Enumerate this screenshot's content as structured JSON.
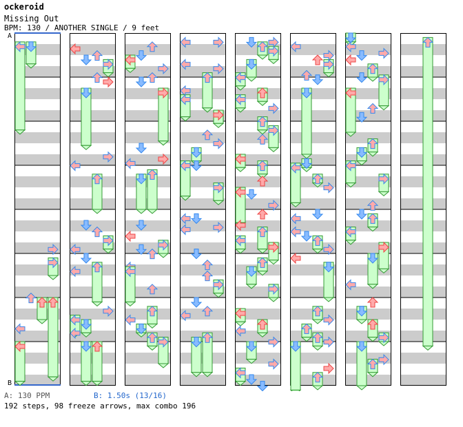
{
  "header": {
    "title": "ockeroid",
    "song": "Missing Out",
    "meta": "BPM: 130 / ANOTHER SINGLE / 9 feet"
  },
  "markers": {
    "a": "A",
    "b": "B"
  },
  "footer": {
    "bpm_a": "A: 130 PPM",
    "bpm_b": "B: 1.50s (13/16)",
    "stats": "192 steps, 98 freeze arrows, max combo 196"
  },
  "colors": {
    "left": "#ee4444",
    "down": "#3388ee",
    "up": "#ee4444",
    "right": "#ee4444",
    "eighth": "#3388ee",
    "sixteenth": "#dd55dd",
    "freeze_fill": "#ccffcc",
    "freeze_border": "#339933",
    "stripe": "#cccccc"
  },
  "chart_data": {
    "type": "step-chart",
    "columns": 8,
    "measures_per_column": 8,
    "lanes": [
      "left",
      "down",
      "up",
      "right"
    ],
    "notes": [
      [
        0,
        0.2,
        0,
        "left",
        "freeze",
        2.0
      ],
      [
        0,
        0.2,
        1,
        "down",
        "freeze",
        0.5
      ],
      [
        0,
        4.8,
        3,
        "right",
        "tap"
      ],
      [
        0,
        5.1,
        3,
        "right",
        "freeze",
        0.4
      ],
      [
        0,
        5.9,
        1,
        "up",
        "tap"
      ],
      [
        0,
        6.0,
        2,
        "up",
        "freeze",
        0.5
      ],
      [
        0,
        6.0,
        3,
        "up",
        "freeze",
        1.8
      ],
      [
        0,
        6.6,
        0,
        "left",
        "tap"
      ],
      [
        0,
        7.0,
        0,
        "left",
        "freeze",
        0.9
      ],
      [
        1,
        0.25,
        0,
        "left",
        "tap"
      ],
      [
        1,
        0.4,
        2,
        "up",
        "tap"
      ],
      [
        1,
        0.5,
        1,
        "down",
        "tap"
      ],
      [
        1,
        0.6,
        3,
        "right",
        "freeze",
        0.3
      ],
      [
        1,
        0.9,
        2,
        "up",
        "tap"
      ],
      [
        1,
        1.0,
        3,
        "right",
        "tap"
      ],
      [
        1,
        1.25,
        1,
        "down",
        "freeze",
        1.3
      ],
      [
        1,
        2.7,
        3,
        "right",
        "tap"
      ],
      [
        1,
        2.9,
        0,
        "left",
        "tap"
      ],
      [
        1,
        3.2,
        2,
        "up",
        "freeze",
        0.8
      ],
      [
        1,
        4.25,
        1,
        "down",
        "tap"
      ],
      [
        1,
        4.4,
        2,
        "up",
        "tap"
      ],
      [
        1,
        4.6,
        3,
        "right",
        "freeze",
        0.3
      ],
      [
        1,
        4.8,
        0,
        "left",
        "tap"
      ],
      [
        1,
        5.0,
        1,
        "down",
        "tap"
      ],
      [
        1,
        5.2,
        2,
        "up",
        "freeze",
        0.9
      ],
      [
        1,
        5.3,
        0,
        "left",
        "tap"
      ],
      [
        1,
        6.2,
        3,
        "right",
        "tap"
      ],
      [
        1,
        6.4,
        0,
        "left",
        "freeze",
        0.4
      ],
      [
        1,
        6.5,
        1,
        "down",
        "freeze",
        0.3
      ],
      [
        1,
        6.7,
        0,
        "left",
        "tap"
      ],
      [
        1,
        7.0,
        1,
        "down",
        "freeze",
        0.9
      ],
      [
        1,
        7.0,
        2,
        "up",
        "freeze",
        0.9
      ],
      [
        2,
        0.2,
        2,
        "up",
        "tap"
      ],
      [
        2,
        0.4,
        1,
        "down",
        "tap"
      ],
      [
        2,
        0.5,
        0,
        "left",
        "freeze",
        0.3
      ],
      [
        2,
        0.7,
        3,
        "right",
        "tap"
      ],
      [
        2,
        0.9,
        2,
        "up",
        "tap"
      ],
      [
        2,
        1.0,
        1,
        "down",
        "tap"
      ],
      [
        2,
        1.25,
        3,
        "right",
        "freeze",
        1.2
      ],
      [
        2,
        2.5,
        1,
        "down",
        "tap"
      ],
      [
        2,
        2.75,
        3,
        "right",
        "tap"
      ],
      [
        2,
        2.85,
        0,
        "left",
        "tap"
      ],
      [
        2,
        3.2,
        1,
        "down",
        "freeze",
        0.8
      ],
      [
        2,
        3.1,
        2,
        "up",
        "freeze",
        0.9
      ],
      [
        2,
        4.25,
        1,
        "down",
        "tap"
      ],
      [
        2,
        4.5,
        0,
        "left",
        "tap"
      ],
      [
        2,
        4.7,
        3,
        "right",
        "freeze",
        0.3
      ],
      [
        2,
        4.8,
        1,
        "down",
        "tap"
      ],
      [
        2,
        4.9,
        2,
        "up",
        "tap"
      ],
      [
        2,
        5.2,
        0,
        "left",
        "tap"
      ],
      [
        2,
        5.3,
        0,
        "left",
        "freeze",
        0.8
      ],
      [
        2,
        5.7,
        2,
        "up",
        "tap"
      ],
      [
        2,
        6.2,
        2,
        "up",
        "freeze",
        0.4
      ],
      [
        2,
        6.4,
        0,
        "left",
        "tap"
      ],
      [
        2,
        6.6,
        1,
        "down",
        "freeze",
        0.2
      ],
      [
        2,
        6.8,
        2,
        "up",
        "freeze",
        0.3
      ],
      [
        2,
        6.9,
        3,
        "right",
        "freeze",
        0.6
      ],
      [
        3,
        0.1,
        0,
        "left",
        "tap"
      ],
      [
        3,
        0.1,
        3,
        "right",
        "tap"
      ],
      [
        3,
        0.6,
        0,
        "left",
        "tap"
      ],
      [
        3,
        0.7,
        3,
        "right",
        "tap"
      ],
      [
        3,
        0.9,
        2,
        "up",
        "freeze",
        0.8
      ],
      [
        3,
        1.2,
        0,
        "left",
        "tap"
      ],
      [
        3,
        1.4,
        0,
        "left",
        "freeze",
        0.5
      ],
      [
        3,
        1.75,
        3,
        "right",
        "freeze",
        0.3
      ],
      [
        3,
        2.2,
        2,
        "up",
        "tap"
      ],
      [
        3,
        2.4,
        3,
        "right",
        "tap"
      ],
      [
        3,
        2.6,
        1,
        "down",
        "freeze",
        0.3
      ],
      [
        3,
        2.9,
        1,
        "down",
        "tap"
      ],
      [
        3,
        2.9,
        0,
        "left",
        "freeze",
        0.8
      ],
      [
        3,
        3.4,
        3,
        "right",
        "freeze",
        0.4
      ],
      [
        3,
        4.1,
        0,
        "left",
        "tap"
      ],
      [
        3,
        4.1,
        1,
        "down",
        "tap"
      ],
      [
        3,
        4.3,
        3,
        "right",
        "tap"
      ],
      [
        3,
        4.35,
        0,
        "left",
        "tap"
      ],
      [
        3,
        4.9,
        1,
        "down",
        "tap"
      ],
      [
        3,
        5.15,
        2,
        "up",
        "tap"
      ],
      [
        3,
        5.4,
        2,
        "up",
        "tap"
      ],
      [
        3,
        5.6,
        3,
        "right",
        "freeze",
        0.3
      ],
      [
        3,
        6.0,
        1,
        "down",
        "tap"
      ],
      [
        3,
        6.2,
        2,
        "up",
        "tap"
      ],
      [
        3,
        6.3,
        0,
        "left",
        "tap"
      ],
      [
        3,
        6.9,
        1,
        "down",
        "freeze",
        0.8
      ],
      [
        3,
        6.8,
        2,
        "up",
        "freeze",
        0.9
      ],
      [
        4,
        0.1,
        1,
        "down",
        "tap"
      ],
      [
        4,
        0.1,
        3,
        "right",
        "tap"
      ],
      [
        4,
        0.2,
        2,
        "up",
        "freeze",
        0.3
      ],
      [
        4,
        0.3,
        3,
        "right",
        "freeze",
        0.3
      ],
      [
        4,
        0.6,
        1,
        "down",
        "freeze",
        0.4
      ],
      [
        4,
        0.9,
        0,
        "left",
        "freeze",
        0.3
      ],
      [
        4,
        1.25,
        2,
        "up",
        "freeze",
        0.3
      ],
      [
        4,
        1.4,
        0,
        "left",
        "freeze",
        0.3
      ],
      [
        4,
        1.6,
        3,
        "right",
        "tap"
      ],
      [
        4,
        1.9,
        2,
        "up",
        "freeze",
        0.3
      ],
      [
        4,
        2.1,
        3,
        "right",
        "freeze",
        0.5
      ],
      [
        4,
        2.3,
        2,
        "up",
        "tap"
      ],
      [
        4,
        2.75,
        0,
        "left",
        "freeze",
        0.3
      ],
      [
        4,
        2.9,
        2,
        "up",
        "freeze",
        0.3
      ],
      [
        4,
        3.25,
        2,
        "up",
        "tap"
      ],
      [
        4,
        3.5,
        0,
        "left",
        "freeze",
        0.8
      ],
      [
        4,
        3.55,
        1,
        "down",
        "tap"
      ],
      [
        4,
        3.8,
        3,
        "right",
        "tap"
      ],
      [
        4,
        4.0,
        2,
        "up",
        "tap"
      ],
      [
        4,
        4.25,
        0,
        "left",
        "tap"
      ],
      [
        4,
        4.4,
        2,
        "up",
        "freeze",
        0.5
      ],
      [
        4,
        4.6,
        0,
        "left",
        "freeze",
        0.3
      ],
      [
        4,
        4.75,
        3,
        "right",
        "freeze",
        0.4
      ],
      [
        4,
        5.1,
        2,
        "up",
        "freeze",
        0.3
      ],
      [
        4,
        5.3,
        1,
        "down",
        "freeze",
        0.4
      ],
      [
        4,
        5.7,
        3,
        "right",
        "freeze",
        0.3
      ],
      [
        4,
        6.25,
        0,
        "left",
        "freeze",
        0.3
      ],
      [
        4,
        6.5,
        2,
        "up",
        "freeze",
        0.3
      ],
      [
        4,
        6.65,
        0,
        "left",
        "tap"
      ],
      [
        4,
        6.9,
        3,
        "right",
        "tap"
      ],
      [
        4,
        7.0,
        1,
        "down",
        "freeze",
        0.4
      ],
      [
        4,
        7.4,
        3,
        "right",
        "tap"
      ],
      [
        4,
        7.6,
        0,
        "left",
        "freeze",
        0.3
      ],
      [
        4,
        7.75,
        1,
        "down",
        "tap"
      ],
      [
        4,
        7.9,
        2,
        "down",
        "tap"
      ],
      [
        5,
        0.2,
        0,
        "left",
        "tap"
      ],
      [
        5,
        0.4,
        3,
        "right",
        "tap"
      ],
      [
        5,
        0.5,
        2,
        "up",
        "tap"
      ],
      [
        5,
        0.6,
        3,
        "right",
        "freeze",
        0.3
      ],
      [
        5,
        0.85,
        1,
        "up",
        "tap"
      ],
      [
        5,
        0.95,
        2,
        "down",
        "tap"
      ],
      [
        5,
        1.25,
        1,
        "down",
        "freeze",
        1.5
      ],
      [
        5,
        2.85,
        1,
        "down",
        "freeze",
        0.2
      ],
      [
        5,
        2.95,
        0,
        "left",
        "freeze",
        0.9
      ],
      [
        5,
        3.2,
        2,
        "up",
        "freeze",
        0.2
      ],
      [
        5,
        3.4,
        3,
        "right",
        "tap"
      ],
      [
        5,
        4.0,
        2,
        "down",
        "tap"
      ],
      [
        5,
        4.1,
        0,
        "left",
        "tap"
      ],
      [
        5,
        4.4,
        0,
        "left",
        "tap"
      ],
      [
        5,
        4.5,
        1,
        "down",
        "tap"
      ],
      [
        5,
        4.6,
        2,
        "up",
        "freeze",
        0.3
      ],
      [
        5,
        4.8,
        3,
        "right",
        "tap"
      ],
      [
        5,
        5.0,
        0,
        "left",
        "tap"
      ],
      [
        5,
        5.2,
        3,
        "down",
        "freeze",
        0.8
      ],
      [
        5,
        6.2,
        2,
        "up",
        "freeze",
        0.3
      ],
      [
        5,
        6.4,
        3,
        "right",
        "tap"
      ],
      [
        5,
        6.6,
        1,
        "up",
        "freeze",
        0.3
      ],
      [
        5,
        6.8,
        2,
        "up",
        "freeze",
        0.3
      ],
      [
        5,
        6.9,
        3,
        "right",
        "tap"
      ],
      [
        5,
        7.0,
        0,
        "down",
        "freeze",
        1.1
      ],
      [
        5,
        7.5,
        3,
        "right",
        "tap"
      ],
      [
        5,
        7.7,
        2,
        "up",
        "freeze",
        0.3
      ],
      [
        6,
        0.0,
        0,
        "down",
        "freeze",
        0.2
      ],
      [
        6,
        0.2,
        0,
        "left",
        "tap"
      ],
      [
        6,
        0.5,
        0,
        "left",
        "tap"
      ],
      [
        6,
        0.35,
        3,
        "right",
        "tap"
      ],
      [
        6,
        0.4,
        1,
        "down",
        "tap"
      ],
      [
        6,
        0.7,
        2,
        "up",
        "freeze",
        0.3
      ],
      [
        6,
        0.9,
        1,
        "down",
        "tap"
      ],
      [
        6,
        0.95,
        3,
        "right",
        "freeze",
        0.7
      ],
      [
        6,
        1.25,
        0,
        "left",
        "freeze",
        1.0
      ],
      [
        6,
        1.6,
        2,
        "up",
        "tap"
      ],
      [
        6,
        1.8,
        1,
        "down",
        "tap"
      ],
      [
        6,
        2.4,
        2,
        "up",
        "freeze",
        0.3
      ],
      [
        6,
        2.6,
        1,
        "down",
        "freeze",
        0.3
      ],
      [
        6,
        2.9,
        0,
        "left",
        "freeze",
        0.5
      ],
      [
        6,
        3.2,
        3,
        "right",
        "freeze",
        0.4
      ],
      [
        6,
        3.8,
        2,
        "up",
        "tap"
      ],
      [
        6,
        4.0,
        1,
        "down",
        "tap"
      ],
      [
        6,
        4.1,
        2,
        "up",
        "freeze",
        0.3
      ],
      [
        6,
        4.4,
        0,
        "left",
        "freeze",
        0.3
      ],
      [
        6,
        4.75,
        3,
        "right",
        "freeze",
        0.6
      ],
      [
        6,
        5.0,
        2,
        "down",
        "freeze",
        0.7
      ],
      [
        6,
        5.6,
        0,
        "left",
        "tap"
      ],
      [
        6,
        6.0,
        2,
        "up",
        "tap"
      ],
      [
        6,
        6.2,
        1,
        "down",
        "freeze",
        0.3
      ],
      [
        6,
        6.5,
        2,
        "up",
        "freeze",
        0.4
      ],
      [
        6,
        6.8,
        3,
        "right",
        "freeze",
        0.2
      ],
      [
        6,
        7.0,
        1,
        "down",
        "freeze",
        1.0
      ],
      [
        6,
        7.4,
        2,
        "up",
        "freeze",
        0.3
      ],
      [
        6,
        7.3,
        3,
        "right",
        "tap"
      ],
      [
        7,
        0.1,
        2,
        "up",
        "freeze",
        7.0
      ]
    ]
  }
}
